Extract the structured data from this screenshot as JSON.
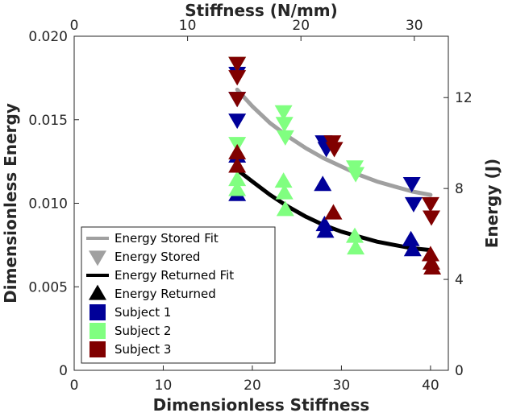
{
  "chart_data": {
    "type": "scatter",
    "xlabel_bottom": "Dimensionless Stiffness",
    "xlabel_top": "Stiffness (N/mm)",
    "ylabel_left": "Dimensionless Energy",
    "ylabel_right": "Energy (J)",
    "xlim_bottom": [
      0,
      42
    ],
    "ylim_left": [
      0,
      0.02
    ],
    "xlim_top": [
      0,
      33
    ],
    "ylim_right": [
      0,
      14.7
    ],
    "xticks_bottom": [
      "0",
      "10",
      "20",
      "30",
      "40"
    ],
    "xticks_bottom_values": [
      0,
      10,
      20,
      30,
      40
    ],
    "yticks_left": [
      "0",
      "0.005",
      "0.010",
      "0.015",
      "0.020"
    ],
    "yticks_left_values": [
      0,
      0.005,
      0.01,
      0.015,
      0.02
    ],
    "xticks_top": [
      "0",
      "10",
      "20",
      "30"
    ],
    "xticks_top_values": [
      0,
      10,
      20,
      30
    ],
    "yticks_right": [
      "0",
      "4",
      "8",
      "12"
    ],
    "yticks_right_values": [
      0,
      4,
      8,
      12
    ],
    "colors": {
      "stored_fit": "#a0a0a0",
      "returned_fit": "#000000",
      "subject1": "#000099",
      "subject2": "#80ff80",
      "subject3": "#800000"
    },
    "fits": [
      {
        "name": "Energy Stored Fit",
        "color": "#a0a0a0",
        "x": [
          18.3,
          20,
          22,
          24,
          26,
          28,
          30,
          32,
          34,
          36,
          38,
          40
        ],
        "y": [
          0.0168,
          0.0158,
          0.0148,
          0.014,
          0.0133,
          0.0127,
          0.0122,
          0.0117,
          0.0113,
          0.011,
          0.0107,
          0.0105
        ]
      },
      {
        "name": "Energy Returned Fit",
        "color": "#000000",
        "x": [
          18.3,
          20,
          22,
          24,
          26,
          28,
          30,
          32,
          34,
          36,
          38,
          40
        ],
        "y": [
          0.012,
          0.0113,
          0.0105,
          0.0098,
          0.0092,
          0.0087,
          0.0083,
          0.008,
          0.0077,
          0.0075,
          0.0073,
          0.0072
        ]
      }
    ],
    "series": [
      {
        "name": "Subject 1 Stored",
        "marker": "tri-down",
        "color": "#000099",
        "x": [
          18.3,
          18.3,
          18.3,
          28.0,
          28.3,
          37.9,
          38.1
        ],
        "y": [
          0.0178,
          0.0163,
          0.015,
          0.0137,
          0.0133,
          0.0112,
          0.01
        ]
      },
      {
        "name": "Subject 1 Returned",
        "marker": "tri-up",
        "color": "#000099",
        "x": [
          18.3,
          18.3,
          27.9,
          28.1,
          28.2,
          37.8,
          38.0
        ],
        "y": [
          0.0128,
          0.0105,
          0.0111,
          0.0087,
          0.0083,
          0.0078,
          0.0072
        ]
      },
      {
        "name": "Subject 2 Stored",
        "marker": "tri-down",
        "color": "#80ff80",
        "x": [
          18.3,
          18.3,
          23.5,
          23.6,
          23.7,
          31.5,
          31.6
        ],
        "y": [
          0.0184,
          0.0136,
          0.0155,
          0.0148,
          0.014,
          0.0122,
          0.0118
        ]
      },
      {
        "name": "Subject 2 Returned",
        "marker": "tri-up",
        "color": "#80ff80",
        "x": [
          18.3,
          18.3,
          23.5,
          23.6,
          23.7,
          31.5,
          31.6
        ],
        "y": [
          0.0114,
          0.0108,
          0.0113,
          0.0106,
          0.0096,
          0.008,
          0.0073
        ]
      },
      {
        "name": "Subject 3 Stored",
        "marker": "tri-down",
        "color": "#800000",
        "x": [
          18.3,
          18.3,
          18.3,
          29.0,
          29.2,
          40.0,
          40.1
        ],
        "y": [
          0.0184,
          0.0176,
          0.0163,
          0.0137,
          0.0133,
          0.01,
          0.0092
        ]
      },
      {
        "name": "Subject 3 Returned",
        "marker": "tri-up",
        "color": "#800000",
        "x": [
          18.3,
          18.3,
          29.1,
          40.0,
          40.1,
          40.2
        ],
        "y": [
          0.013,
          0.0122,
          0.0094,
          0.0069,
          0.0064,
          0.0061
        ]
      }
    ],
    "legend": {
      "position": "bottom-left",
      "entries": [
        {
          "label": "Energy Stored Fit",
          "kind": "line",
          "color": "#a0a0a0"
        },
        {
          "label": "Energy Stored",
          "kind": "tri-down",
          "color": "#a0a0a0"
        },
        {
          "label": "Energy Returned Fit",
          "kind": "line",
          "color": "#000000"
        },
        {
          "label": "Energy Returned",
          "kind": "tri-up",
          "color": "#000000"
        },
        {
          "label": "Subject 1",
          "kind": "square",
          "color": "#000099"
        },
        {
          "label": "Subject 2",
          "kind": "square",
          "color": "#80ff80"
        },
        {
          "label": "Subject 3",
          "kind": "square",
          "color": "#800000"
        }
      ]
    }
  }
}
